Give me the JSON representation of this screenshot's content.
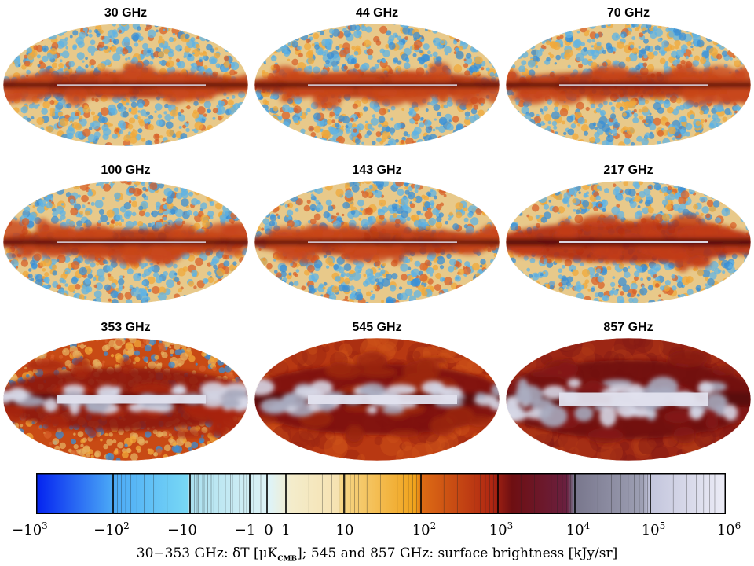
{
  "maps": [
    {
      "title": "30 GHz",
      "type": "cmb"
    },
    {
      "title": "44 GHz",
      "type": "cmb"
    },
    {
      "title": "70 GHz",
      "type": "cmb"
    },
    {
      "title": "100 GHz",
      "type": "cmb"
    },
    {
      "title": "143 GHz",
      "type": "cmb"
    },
    {
      "title": "217 GHz",
      "type": "dust-low"
    },
    {
      "title": "353 GHz",
      "type": "dust-mid"
    },
    {
      "title": "545 GHz",
      "type": "dust-high"
    },
    {
      "title": "857 GHz",
      "type": "dust-max"
    }
  ],
  "colorbar": {
    "ticks": [
      {
        "base": "−10",
        "exp": "3"
      },
      {
        "base": "−10",
        "exp": "2"
      },
      {
        "base": "−10",
        "exp": ""
      },
      {
        "base": "−1",
        "exp": ""
      },
      {
        "base": "0",
        "exp": ""
      },
      {
        "base": "1",
        "exp": ""
      },
      {
        "base": "10",
        "exp": ""
      },
      {
        "base": "10",
        "exp": "2"
      },
      {
        "base": "10",
        "exp": "3"
      },
      {
        "base": "10",
        "exp": "4"
      },
      {
        "base": "10",
        "exp": "5"
      },
      {
        "base": "10",
        "exp": "6"
      }
    ],
    "colors": {
      "deep_blue": "#0a2df0",
      "light_blue": "#78d8f5",
      "cream": "#f4eccb",
      "orange": "#f0a21a",
      "dark_red": "#6e0f12",
      "grey": "#9ea0b4",
      "pale": "#ececf6"
    }
  },
  "caption": {
    "part1": "30−353 GHz: δT [μK",
    "sub": "CMB",
    "part2": "]; 545 and 857 GHz: surface brightness [kJy/sr]"
  }
}
